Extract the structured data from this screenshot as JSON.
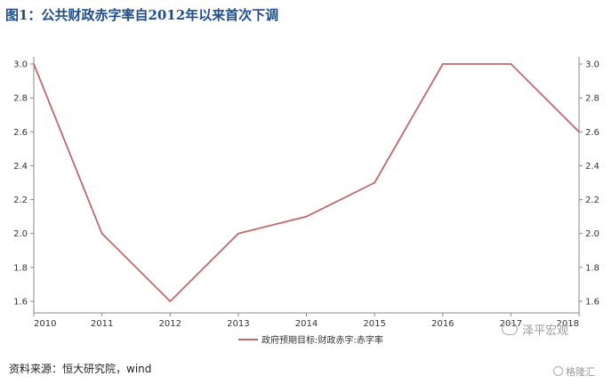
{
  "title": "图1：公共财政赤字率自2012年以来首次下调",
  "source": "资料来源：恒大研究院，wind",
  "watermark_primary": "泽平宏观",
  "watermark_secondary": "格隆汇",
  "chart_data": {
    "type": "line",
    "title": "图1：公共财政赤字率自2012年以来首次下调",
    "x": [
      "2010",
      "2011",
      "2012",
      "2013",
      "2014",
      "2015",
      "2016",
      "2017",
      "2018"
    ],
    "series": [
      {
        "name": "政府预期目标:财政赤字:赤字率",
        "values": [
          3.0,
          2.0,
          1.6,
          2.0,
          2.1,
          2.3,
          3.0,
          3.0,
          2.6
        ],
        "color": "#c0696c"
      }
    ],
    "ylim": [
      1.6,
      3.0
    ],
    "yticks": [
      "1.6",
      "1.8",
      "2.0",
      "2.2",
      "2.4",
      "2.6",
      "2.8",
      "3.0"
    ],
    "xlabel": "",
    "ylabel": "",
    "dual_y_axis": true,
    "grid": false,
    "legend_position": "bottom-center"
  }
}
